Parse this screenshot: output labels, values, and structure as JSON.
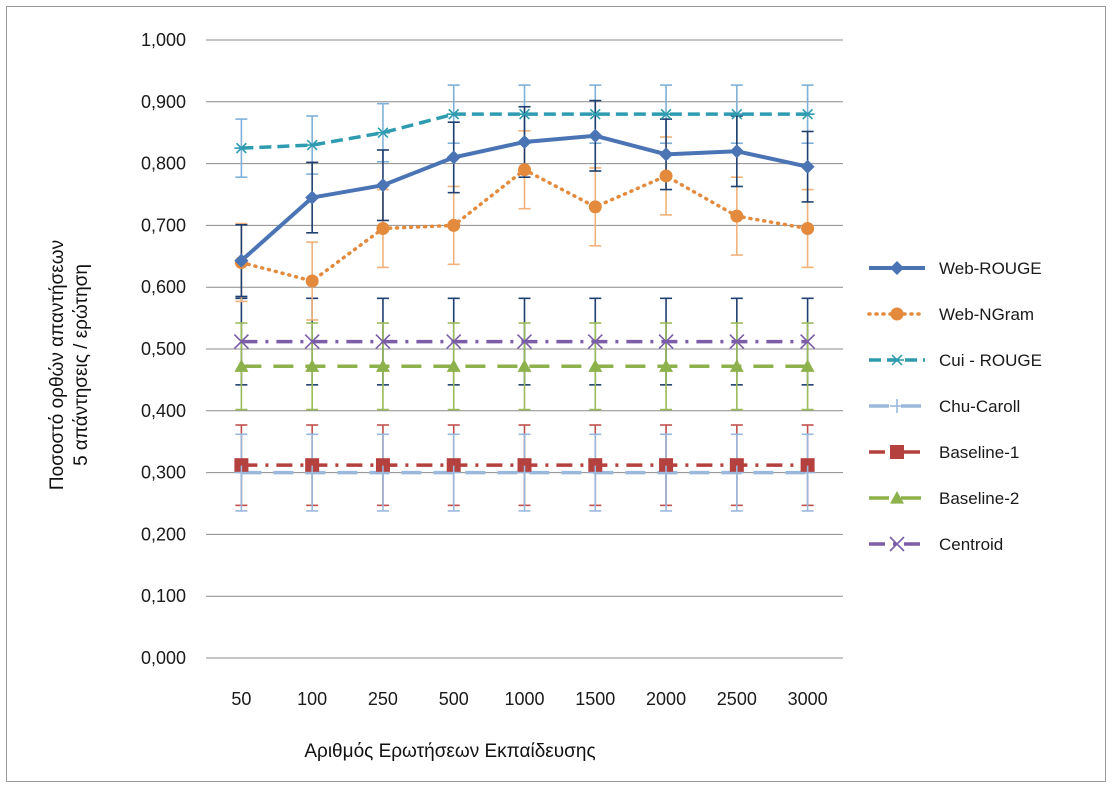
{
  "chart_data": {
    "type": "line",
    "xlabel": "Αριθμός Ερωτήσεων Εκπαίδευσης",
    "ylabel_line1": "Ποσοστό ορθών απαντήσεων",
    "ylabel_line2": "5 απάντησεις / ερώτηση",
    "categories": [
      "50",
      "100",
      "250",
      "500",
      "1000",
      "1500",
      "2000",
      "2500",
      "3000"
    ],
    "y_ticks": [
      "1,000",
      "0,900",
      "0,800",
      "0,700",
      "0,600",
      "0,500",
      "0,400",
      "0,300",
      "0,200",
      "0,100",
      "0,000"
    ],
    "ylim": [
      0,
      1
    ],
    "grid": true,
    "legend_position": "right",
    "series": [
      {
        "name": "Web-ROUGE",
        "color": "#4a74b4",
        "dash": "solid",
        "marker": "diamond",
        "error_color": "#1f3f6e",
        "values": [
          0.643,
          0.745,
          0.765,
          0.81,
          0.835,
          0.845,
          0.815,
          0.82,
          0.795
        ],
        "error": [
          0.058,
          0.057,
          0.057,
          0.057,
          0.057,
          0.057,
          0.057,
          0.057,
          0.057
        ]
      },
      {
        "name": "Web-NGram",
        "color": "#e38a3c",
        "dash": "dot",
        "marker": "circle",
        "error_color": "#f0b27a",
        "values": [
          0.64,
          0.61,
          0.695,
          0.7,
          0.79,
          0.73,
          0.78,
          0.715,
          0.695
        ],
        "error": [
          0.063,
          0.063,
          0.063,
          0.063,
          0.063,
          0.063,
          0.063,
          0.063,
          0.063
        ]
      },
      {
        "name": "Cui - ROUGE",
        "color": "#2e9bb0",
        "dash": "dash",
        "marker": "star",
        "error_color": "#7fb0d8",
        "values": [
          0.825,
          0.83,
          0.85,
          0.88,
          0.88,
          0.88,
          0.88,
          0.88,
          0.88
        ],
        "error": [
          0.047,
          0.047,
          0.047,
          0.047,
          0.047,
          0.047,
          0.047,
          0.047,
          0.047
        ]
      },
      {
        "name": "Chu-Caroll",
        "color": "#9ab8dc",
        "dash": "longdash",
        "marker": "plus",
        "error_color": "#9ab8dc",
        "values": [
          0.3,
          0.3,
          0.3,
          0.3,
          0.3,
          0.3,
          0.3,
          0.3,
          0.3
        ],
        "error": [
          0.062,
          0.062,
          0.062,
          0.062,
          0.062,
          0.062,
          0.062,
          0.062,
          0.062
        ]
      },
      {
        "name": "Baseline-1",
        "color": "#b5413f",
        "dash": "dashdot",
        "marker": "square",
        "error_color": "#c0504d",
        "values": [
          0.312,
          0.312,
          0.312,
          0.312,
          0.312,
          0.312,
          0.312,
          0.312,
          0.312
        ],
        "error": [
          0.065,
          0.065,
          0.065,
          0.065,
          0.065,
          0.065,
          0.065,
          0.065,
          0.065
        ]
      },
      {
        "name": "Baseline-2",
        "color": "#8db14b",
        "dash": "longdash",
        "marker": "triangle",
        "error_color": "#9bbb59",
        "values": [
          0.472,
          0.472,
          0.472,
          0.472,
          0.472,
          0.472,
          0.472,
          0.472,
          0.472
        ],
        "error": [
          0.07,
          0.07,
          0.07,
          0.07,
          0.07,
          0.07,
          0.07,
          0.07,
          0.07
        ]
      },
      {
        "name": "Centroid",
        "color": "#7b5ea7",
        "dash": "dashdot",
        "marker": "x",
        "error_color": "#1f3f6e",
        "values": [
          0.512,
          0.512,
          0.512,
          0.512,
          0.512,
          0.512,
          0.512,
          0.512,
          0.512
        ],
        "error": [
          0.07,
          0.07,
          0.07,
          0.07,
          0.07,
          0.07,
          0.07,
          0.07,
          0.07
        ]
      }
    ]
  }
}
